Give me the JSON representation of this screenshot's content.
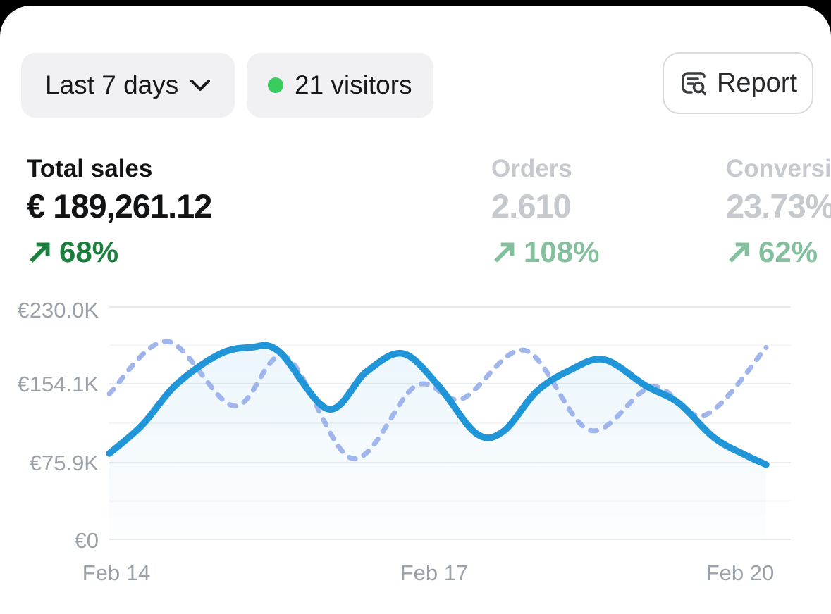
{
  "header": {
    "date_range_label": "Last 7 days",
    "visitors_label": "21 visitors",
    "report_label": "Report"
  },
  "metrics": [
    {
      "label": "Total sales",
      "value": "€ 189,261.12",
      "delta": "68%",
      "trend": "up",
      "active": true
    },
    {
      "label": "Orders",
      "value": "2.610",
      "delta": "108%",
      "trend": "up",
      "active": false
    },
    {
      "label": "Conversion rate",
      "value": "23.73%",
      "delta": "62%",
      "trend": "up",
      "active": false
    }
  ],
  "colors": {
    "accent_line": "#2096d8",
    "compare_line": "#9fb5ec",
    "positive_green": "#1b7f3e",
    "muted_green": "#84c09e",
    "muted_text": "#c6c9cd",
    "axis_text": "#9aa1a9",
    "badge_dot_green": "#38cd5e",
    "grid_major": "#e8eaec",
    "grid_minor": "#f3f4f6"
  },
  "chart_data": {
    "type": "line",
    "metric_shown": "Total sales",
    "grid": "horizontal",
    "legend": "none",
    "x_ticks": [
      "Feb 14",
      "Feb 17",
      "Feb 20"
    ],
    "x_tick_days": [
      0,
      3,
      6
    ],
    "y_ticks": [
      "€230.0K",
      "€154.1K",
      "€75.9K",
      "€0"
    ],
    "y_tick_values_k": [
      230.0,
      154.1,
      75.9,
      0
    ],
    "y_minor_values_k": [
      192.0,
      115.0,
      38.0
    ],
    "ylim_k": [
      0,
      230
    ],
    "xlim_days": [
      0,
      6
    ],
    "series": [
      {
        "name": "current-period",
        "style": "solid",
        "area_fill": true,
        "points_day_valueK": [
          [
            0,
            85
          ],
          [
            0.3,
            113
          ],
          [
            0.61,
            153
          ],
          [
            1.0,
            183
          ],
          [
            1.29,
            190
          ],
          [
            1.55,
            186
          ],
          [
            2.0,
            129
          ],
          [
            2.35,
            166
          ],
          [
            2.68,
            184
          ],
          [
            3.0,
            153
          ],
          [
            3.35,
            105
          ],
          [
            3.6,
            107
          ],
          [
            3.9,
            146
          ],
          [
            4.2,
            167
          ],
          [
            4.52,
            178
          ],
          [
            4.9,
            152
          ],
          [
            5.2,
            135
          ],
          [
            5.52,
            101
          ],
          [
            5.8,
            84
          ],
          [
            6,
            74
          ]
        ]
      },
      {
        "name": "previous-period",
        "style": "dashed",
        "area_fill": false,
        "points_day_valueK": [
          [
            0,
            144
          ],
          [
            0.53,
            196
          ],
          [
            1.14,
            132
          ],
          [
            1.61,
            181
          ],
          [
            2.22,
            80
          ],
          [
            2.8,
            152
          ],
          [
            3.22,
            139
          ],
          [
            3.8,
            187
          ],
          [
            4.39,
            108
          ],
          [
            4.96,
            151
          ],
          [
            5.44,
            123
          ],
          [
            6,
            190
          ]
        ]
      }
    ]
  }
}
